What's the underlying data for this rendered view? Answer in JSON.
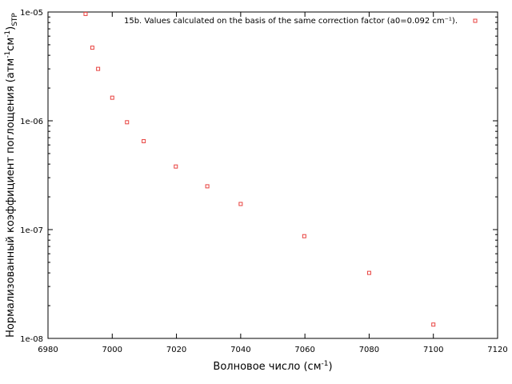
{
  "chart_data": {
    "type": "scatter",
    "x_scale": "linear",
    "y_scale": "log",
    "xlim": [
      6980,
      7120
    ],
    "ylim": [
      1e-08,
      1e-05
    ],
    "x_ticks": [
      6980,
      7000,
      7020,
      7040,
      7060,
      7080,
      7100,
      7120
    ],
    "x_tick_labels": [
      "6980",
      "7000",
      "7020",
      "7040",
      "7060",
      "7080",
      "7100",
      "7120"
    ],
    "y_ticks": [
      1e-08,
      1e-07,
      1e-06,
      1e-05
    ],
    "y_tick_labels": [
      "1e-08",
      "1e-07",
      "1e-06",
      "1e-05"
    ],
    "xlabel_main": "Волновое число (см",
    "xlabel_sup": "-1",
    "xlabel_end": ")",
    "ylabel_main": "Нормализованный коэффициент поглощения (атм",
    "ylabel_sup1": "-1",
    "ylabel_mid": "см",
    "ylabel_sup2": "-1",
    "ylabel_end": ")",
    "ylabel_sub": "STP",
    "legend_position": "top-right",
    "grid": false,
    "marker_color": "#e8423f",
    "series": [
      {
        "name": "15b. Values calculated on the basis of the same correction factor (a0=0.092 cm⁻¹).",
        "points": [
          {
            "x": 6991.7,
            "y": 9.6e-06
          },
          {
            "x": 6993.8,
            "y": 4.7e-06
          },
          {
            "x": 6995.6,
            "y": 3e-06
          },
          {
            "x": 7000.0,
            "y": 1.63e-06
          },
          {
            "x": 7004.6,
            "y": 9.7e-07
          },
          {
            "x": 7009.8,
            "y": 6.5e-07
          },
          {
            "x": 7019.8,
            "y": 3.8e-07
          },
          {
            "x": 7029.6,
            "y": 2.5e-07
          },
          {
            "x": 7040.0,
            "y": 1.72e-07
          },
          {
            "x": 7059.8,
            "y": 8.7e-08
          },
          {
            "x": 7080.0,
            "y": 4e-08
          },
          {
            "x": 7100.0,
            "y": 1.34e-08
          }
        ]
      }
    ]
  }
}
